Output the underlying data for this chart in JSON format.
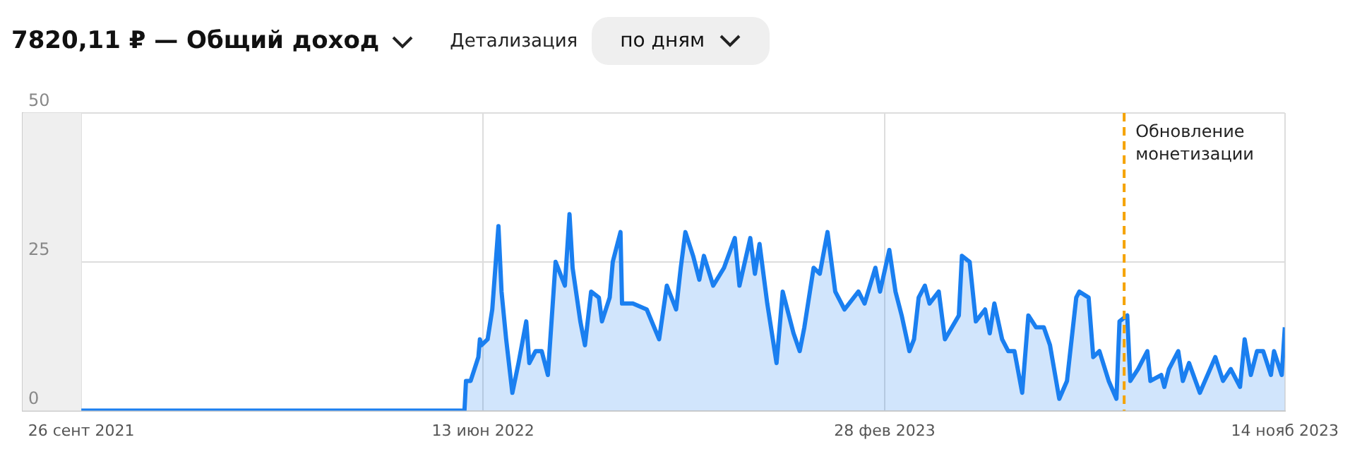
{
  "chart_data": {
    "type": "area",
    "title": "7820,11 ₽ — Общий доход",
    "annotations": [
      "Детализация",
      "по дням"
    ],
    "x": [
      "2021-09-26",
      "2022-05-30",
      "2022-06-01",
      "2022-06-02",
      "2022-06-05",
      "2022-06-10",
      "2022-06-11",
      "2022-06-12",
      "2022-06-16",
      "2022-06-19",
      "2022-06-23",
      "2022-06-25",
      "2022-06-28",
      "2022-07-02",
      "2022-07-06",
      "2022-07-11",
      "2022-07-13",
      "2022-07-17",
      "2022-07-21",
      "2022-07-25",
      "2022-07-30",
      "2022-08-02",
      "2022-08-05",
      "2022-08-08",
      "2022-08-10",
      "2022-08-15",
      "2022-08-18",
      "2022-08-22",
      "2022-08-27",
      "2022-08-29",
      "2022-09-03",
      "2022-09-05",
      "2022-09-10",
      "2022-09-11",
      "2022-09-18",
      "2022-09-27",
      "2022-10-05",
      "2022-10-10",
      "2022-10-16",
      "2022-10-19",
      "2022-10-22",
      "2022-10-27",
      "2022-10-31",
      "2022-11-03",
      "2022-11-09",
      "2022-11-16",
      "2022-11-23",
      "2022-11-26",
      "2022-12-03",
      "2022-12-06",
      "2022-12-09",
      "2022-12-14",
      "2022-12-20",
      "2022-12-24",
      "2022-12-31",
      "2023-01-04",
      "2023-01-07",
      "2023-01-13",
      "2023-01-17",
      "2023-01-22",
      "2023-01-27",
      "2023-02-02",
      "2023-02-11",
      "2023-02-15",
      "2023-02-22",
      "2023-02-25",
      "2023-03-03",
      "2023-03-07",
      "2023-03-11",
      "2023-03-16",
      "2023-03-19",
      "2023-03-22",
      "2023-03-26",
      "2023-03-29",
      "2023-04-04",
      "2023-04-08",
      "2023-04-17",
      "2023-04-19",
      "2023-04-24",
      "2023-04-28",
      "2023-05-04",
      "2023-05-07",
      "2023-05-10",
      "2023-05-15",
      "2023-05-19",
      "2023-05-23",
      "2023-05-28",
      "2023-06-01",
      "2023-06-06",
      "2023-06-11",
      "2023-06-15",
      "2023-06-21",
      "2023-06-26",
      "2023-07-02",
      "2023-07-04",
      "2023-07-10",
      "2023-07-13",
      "2023-07-17",
      "2023-07-23",
      "2023-07-28",
      "2023-07-30",
      "2023-08-04",
      "2023-08-06",
      "2023-08-11",
      "2023-08-17",
      "2023-08-19",
      "2023-08-26",
      "2023-08-28",
      "2023-08-31",
      "2023-09-06",
      "2023-09-09",
      "2023-09-13",
      "2023-09-20",
      "2023-09-30",
      "2023-10-05",
      "2023-10-10",
      "2023-10-16",
      "2023-10-19",
      "2023-10-23",
      "2023-10-27",
      "2023-10-31",
      "2023-11-05",
      "2023-11-07",
      "2023-11-12",
      "2023-11-14"
    ],
    "series": [
      {
        "color": "#1a7ff0",
        "values": [
          0,
          0,
          0,
          5,
          5,
          9,
          12,
          11,
          12,
          17,
          31,
          20,
          12,
          3,
          8,
          15,
          8,
          10,
          10,
          6,
          25,
          23,
          21,
          33,
          24,
          15,
          11,
          20,
          19,
          15,
          19,
          25,
          30,
          18,
          18,
          17,
          12,
          21,
          17,
          24,
          30,
          26,
          22,
          26,
          21,
          24,
          29,
          21,
          29,
          23,
          28,
          18,
          8,
          20,
          13,
          10,
          14,
          24,
          23,
          30,
          20,
          17,
          20,
          18,
          24,
          20,
          27,
          20,
          16,
          10,
          12,
          19,
          21,
          18,
          20,
          12,
          16,
          26,
          25,
          15,
          17,
          13,
          18,
          12,
          10,
          10,
          3,
          16,
          14,
          14,
          11,
          2,
          5,
          19,
          20,
          19,
          9,
          10,
          5,
          2,
          15,
          16,
          5,
          7,
          10,
          5,
          6,
          4,
          7,
          10,
          5,
          8,
          3,
          9,
          5,
          7,
          4,
          12,
          6,
          10,
          10,
          6,
          10,
          6,
          14
        ]
      }
    ],
    "xlim": [
      "2021-08-19",
      "2023-11-14"
    ],
    "xticks": [
      {
        "value": "2021-09-26",
        "label": "26 сент 2021"
      },
      {
        "value": "2022-06-13",
        "label": "13 июн 2022"
      },
      {
        "value": "2023-02-28",
        "label": "28 фев 2023"
      },
      {
        "value": "2023-11-14",
        "label": "14 нояб 2023"
      }
    ],
    "ylim": [
      0,
      50
    ],
    "yticks": [
      0,
      25,
      50
    ],
    "grid": true,
    "marker": "none",
    "ref_lines": [
      {
        "axis": "x",
        "value": "2023-08-02",
        "label": "Обновление монетизации",
        "color": "#f5a300",
        "line_style": "dashed"
      }
    ],
    "bands": [
      {
        "axis": "x",
        "from": "2021-08-19",
        "to": "2021-09-26",
        "color": "#efefef"
      }
    ]
  }
}
